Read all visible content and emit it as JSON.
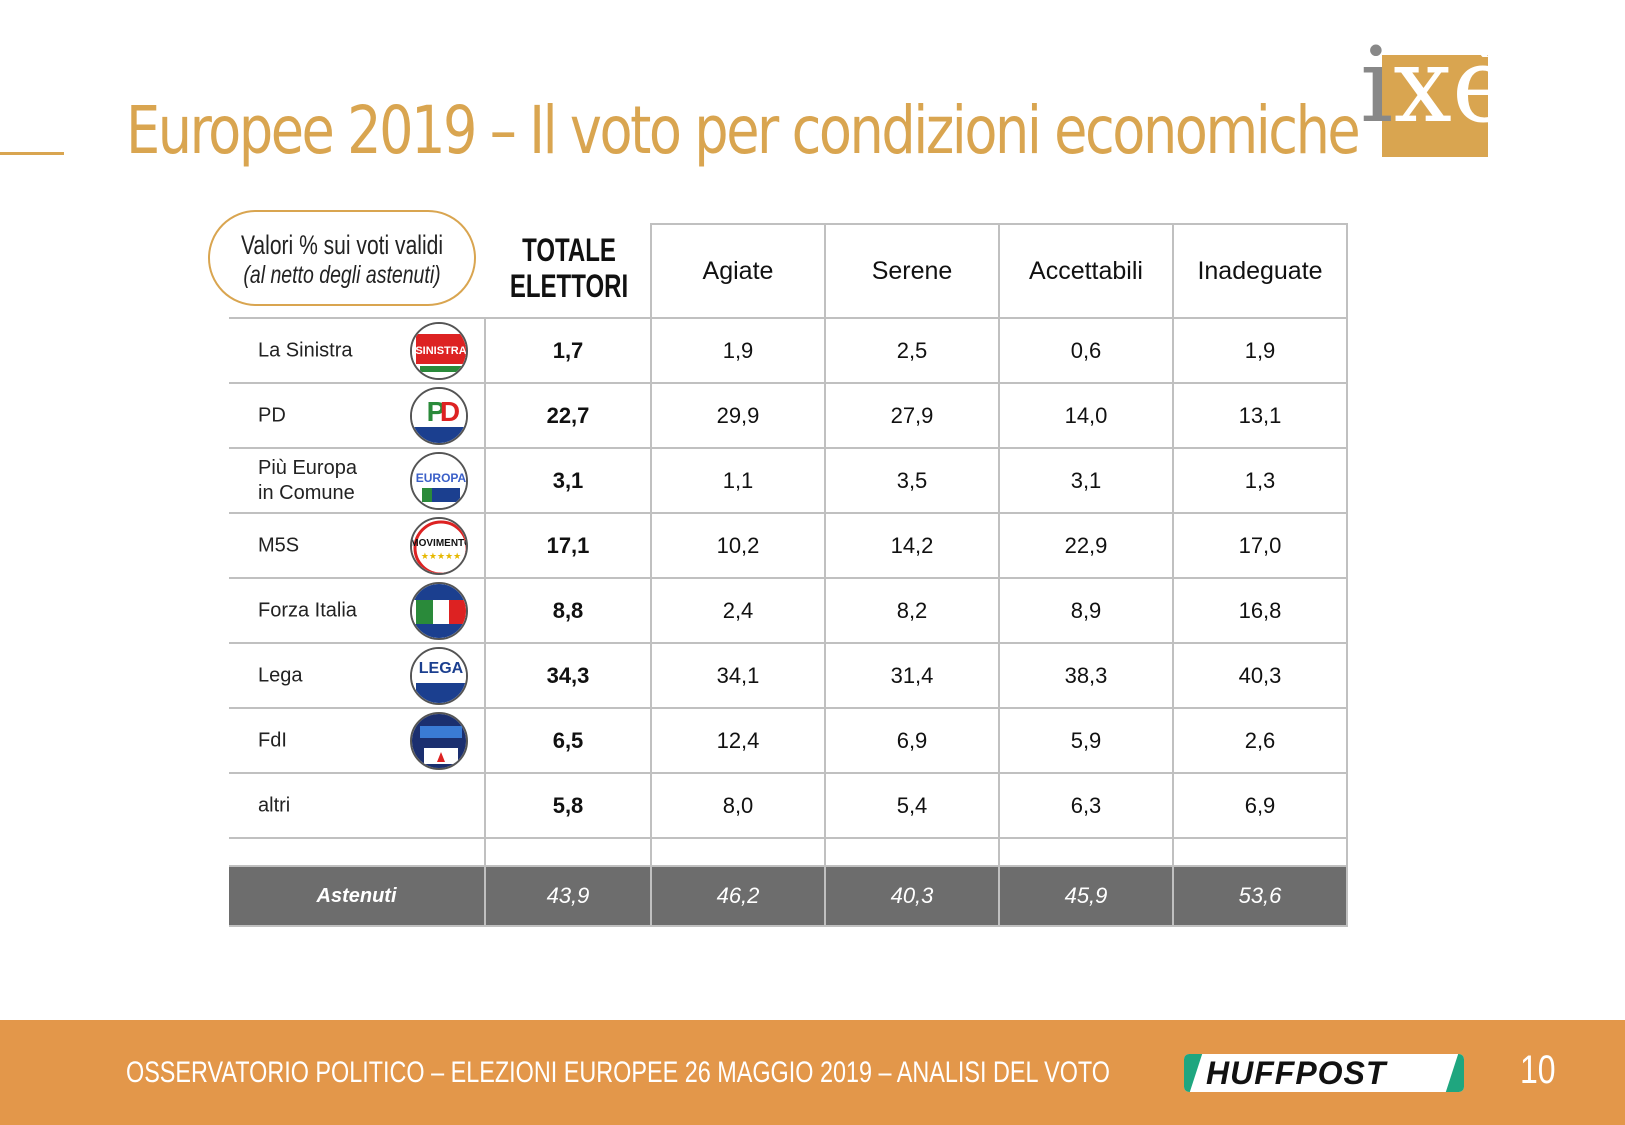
{
  "title": "Europee 2019 – Il voto per condizioni economiche",
  "logo_text": "ixè",
  "note": {
    "line1": "Valori % sui voti validi",
    "line2": "(al netto degli astenuti)"
  },
  "columns": {
    "total": "TOTALE ELETTORI",
    "c1": "Agiate",
    "c2": "Serene",
    "c3": "Accettabili",
    "c4": "Inadeguate"
  },
  "rows": [
    {
      "party": "La Sinistra",
      "total": "1,7",
      "v": [
        "1,9",
        "2,5",
        "0,6",
        "1,9"
      ],
      "emblem": "la-sinistra-logo"
    },
    {
      "party": "PD",
      "total": "22,7",
      "v": [
        "29,9",
        "27,9",
        "14,0",
        "13,1"
      ],
      "emblem": "pd-logo"
    },
    {
      "party": "Più Europa in Comune",
      "total": "3,1",
      "v": [
        "1,1",
        "3,5",
        "3,1",
        "1,3"
      ],
      "emblem": "piu-europa-logo"
    },
    {
      "party": "M5S",
      "total": "17,1",
      "v": [
        "10,2",
        "14,2",
        "22,9",
        "17,0"
      ],
      "emblem": "m5s-logo"
    },
    {
      "party": "Forza Italia",
      "total": "8,8",
      "v": [
        "2,4",
        "8,2",
        "8,9",
        "16,8"
      ],
      "emblem": "forza-italia-logo"
    },
    {
      "party": "Lega",
      "total": "34,3",
      "v": [
        "34,1",
        "31,4",
        "38,3",
        "40,3"
      ],
      "emblem": "lega-logo"
    },
    {
      "party": "FdI",
      "total": "6,5",
      "v": [
        "12,4",
        "6,9",
        "5,9",
        "2,6"
      ],
      "emblem": "fdi-logo"
    },
    {
      "party": "altri",
      "total": "5,8",
      "v": [
        "8,0",
        "5,4",
        "6,3",
        "6,9"
      ]
    }
  ],
  "abstained": {
    "label": "Astenuti",
    "total": "43,9",
    "v": [
      "46,2",
      "40,3",
      "45,9",
      "53,6"
    ]
  },
  "footer": {
    "text": "OSSERVATORIO POLITICO – ELEZIONI EUROPEE 26 MAGGIO 2019 – ANALISI DEL VOTO",
    "brand": "HUFFPOST",
    "page": "10"
  },
  "colors": {
    "accent": "#d9a550",
    "footer": "#e3974a",
    "abstained_bg": "#6d6d6d"
  }
}
